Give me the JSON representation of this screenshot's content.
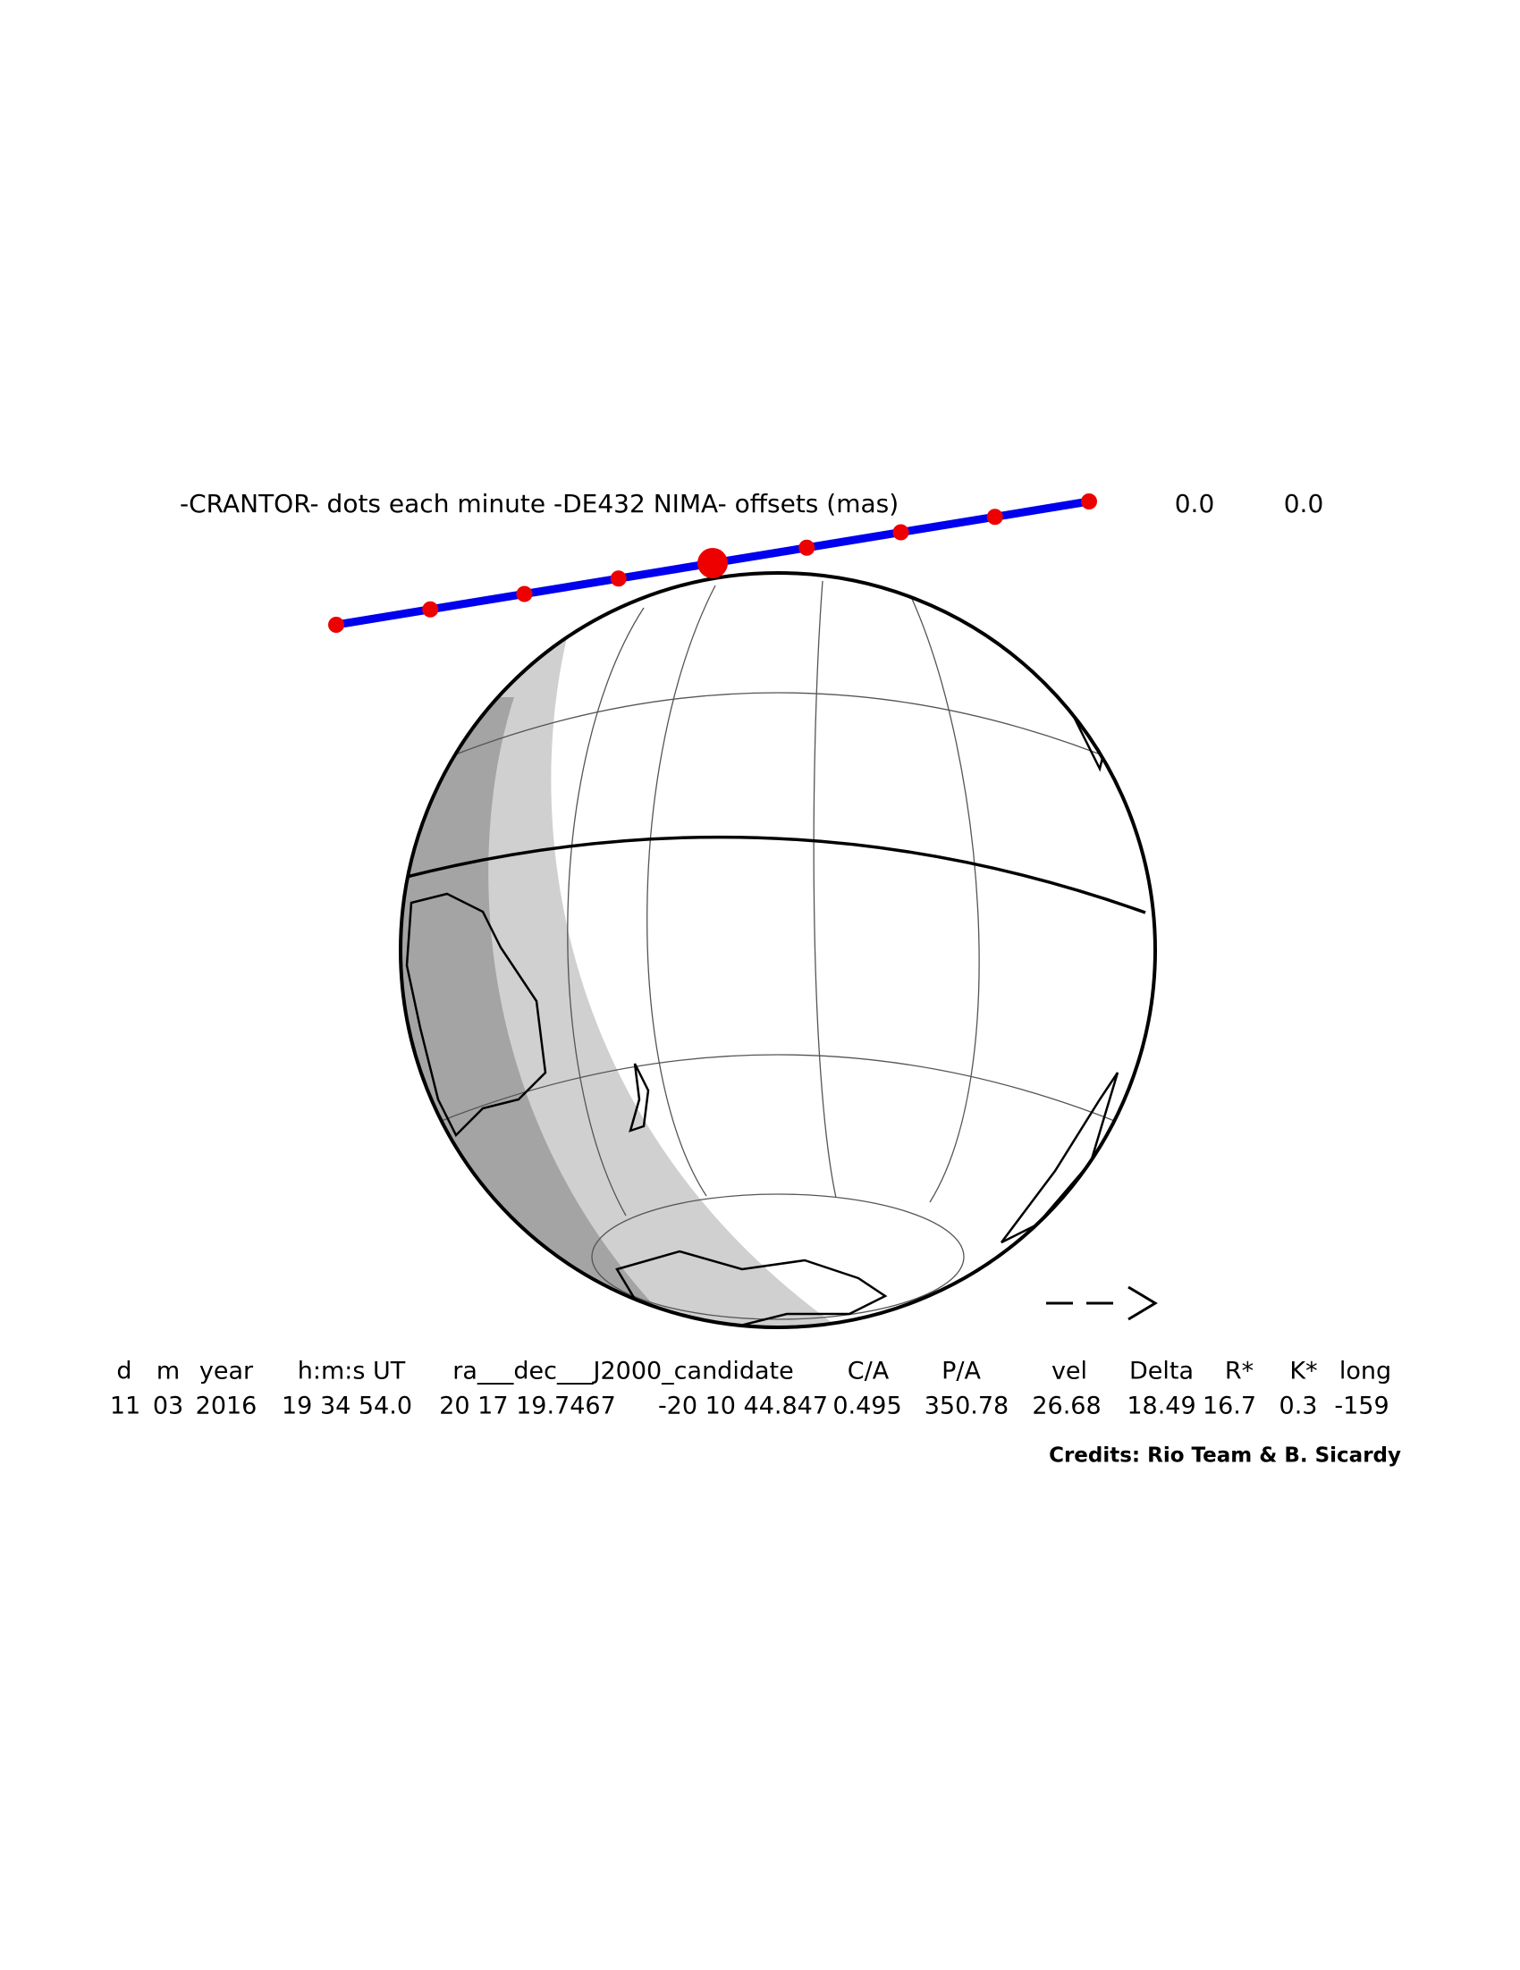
{
  "header": {
    "title": "-CRANTOR- dots each minute -DE432 NIMA- offsets (mas)",
    "offsets": [
      "0.0",
      "0.0"
    ]
  },
  "table": {
    "columns": [
      "d",
      "m",
      "year",
      "h:m:s UT",
      "ra___dec___J2000_candidate",
      "C/A",
      "P/A",
      "vel",
      "Delta",
      "R*",
      "K*",
      "long"
    ],
    "rows": [
      [
        "11",
        "03",
        "2016",
        "19 34 54.0",
        "20 17 19.7467",
        "-20 10 44.847",
        "0.495",
        "350.78",
        "26.68",
        "18.49",
        "16.7",
        "0.3",
        "-159"
      ]
    ]
  },
  "credits": "Credits: Rio Team & B. Sicardy"
}
